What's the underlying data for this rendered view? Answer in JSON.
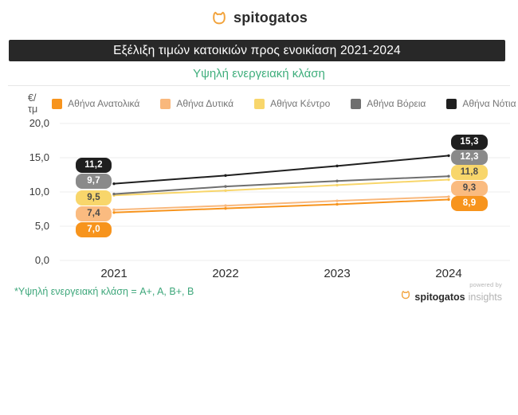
{
  "brand": {
    "logo_text": "spitogatos",
    "cat_icon_color": "#F2A33C"
  },
  "header": {
    "title": "Εξέλιξη τιμών κατοικιών προς ενοικίαση 2021-2024",
    "subtitle": "Υψηλή ενεργειακή κλάση",
    "banner_bg": "#282828",
    "subtitle_color": "#3FAE7C"
  },
  "footnote": "*Υψηλή ενεργειακή κλάση = A+, A, B+, B",
  "footer": {
    "powered_by": "powered by",
    "brand": "spitogatos",
    "suffix": "insights"
  },
  "chart_data": {
    "type": "line",
    "title": "Εξέλιξη τιμών κατοικιών προς ενοικίαση 2021-2024",
    "subtitle": "Υψηλή ενεργειακή κλάση",
    "unit_label": "€/τμ",
    "x_categories": [
      "2021",
      "2022",
      "2023",
      "2024"
    ],
    "ylim": [
      0,
      20
    ],
    "ytick_values": [
      20,
      15,
      10,
      5,
      0
    ],
    "ytick_labels": [
      "20,0",
      "15,0",
      "10,0",
      "5,0",
      "0,0"
    ],
    "grid": true,
    "legend_position": "top",
    "series": [
      {
        "name": "Αθήνα Ανατολικά",
        "color": "#F7941D",
        "badge_color": "#F7941D",
        "label_text_color": "#FFFFFF",
        "values": [
          7.0,
          7.6,
          8.2,
          8.9
        ],
        "label_start": "7,0",
        "label_end": "8,9"
      },
      {
        "name": "Αθήνα Δυτικά",
        "color": "#F9B87C",
        "badge_color": "#FABB80",
        "label_text_color": "#4A4A4A",
        "values": [
          7.4,
          8.0,
          8.7,
          9.3
        ],
        "label_start": "7,4",
        "label_end": "9,3"
      },
      {
        "name": "Αθήνα Κέντρο",
        "color": "#F8D66B",
        "badge_color": "#F8D66B",
        "label_text_color": "#4A4A4A",
        "values": [
          9.5,
          10.2,
          11.0,
          11.8
        ],
        "label_start": "9,5",
        "label_end": "11,8"
      },
      {
        "name": "Αθήνα Βόρεια",
        "color": "#6F6F6F",
        "badge_color": "#8A8A8A",
        "label_text_color": "#FFFFFF",
        "values": [
          9.7,
          10.8,
          11.6,
          12.3
        ],
        "label_start": "9,7",
        "label_end": "12,3"
      },
      {
        "name": "Αθήνα Νότια",
        "color": "#1F1F1F",
        "badge_color": "#1F1F1F",
        "label_text_color": "#FFFFFF",
        "values": [
          11.2,
          12.4,
          13.8,
          15.3
        ],
        "label_start": "11,2",
        "label_end": "15,3"
      }
    ]
  }
}
